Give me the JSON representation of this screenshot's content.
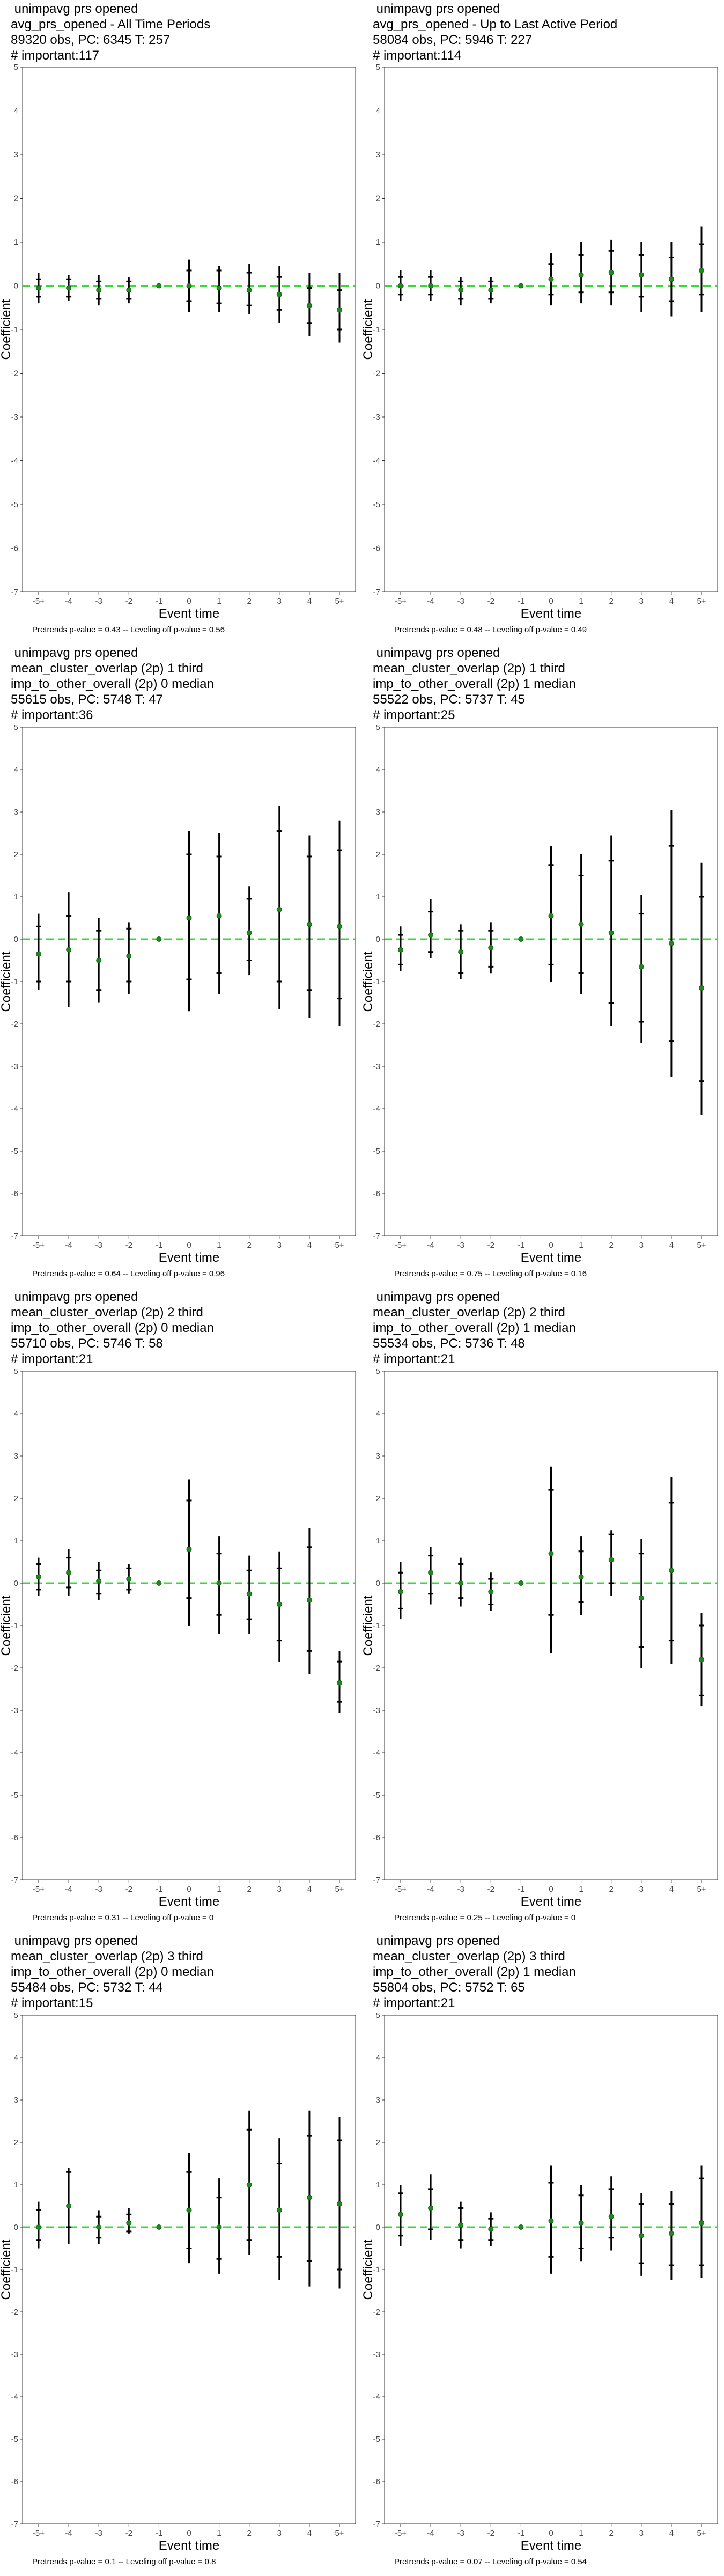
{
  "chart_data": [
    {
      "type": "scatter",
      "title_lines": [
        " unimpavg prs opened",
        "avg_prs_opened - All Time Periods",
        "89320 obs, PC: 6345 T: 257",
        "# important:117"
      ],
      "xlabel": "Event time",
      "ylabel": "Coefficient",
      "categories": [
        "-5+",
        "-4",
        "-3",
        "-2",
        "-1",
        "0",
        "1",
        "2",
        "3",
        "4",
        "5+"
      ],
      "ylim": [
        -7,
        5
      ],
      "yticks": [
        5,
        4,
        3,
        2,
        1,
        0,
        -1,
        -2,
        -3,
        -4,
        -5,
        -6,
        -7
      ],
      "estimates": [
        -0.05,
        -0.05,
        -0.1,
        -0.1,
        0,
        0,
        -0.05,
        -0.1,
        -0.2,
        -0.45,
        -0.55
      ],
      "ci90": [
        [
          -0.25,
          0.15
        ],
        [
          -0.25,
          0.15
        ],
        [
          -0.3,
          0.1
        ],
        [
          -0.3,
          0.1
        ],
        [
          0,
          0
        ],
        [
          -0.35,
          0.35
        ],
        [
          -0.4,
          0.35
        ],
        [
          -0.45,
          0.3
        ],
        [
          -0.55,
          0.2
        ],
        [
          -0.85,
          -0.05
        ],
        [
          -1.0,
          -0.1
        ]
      ],
      "ci95": [
        [
          -0.4,
          0.3
        ],
        [
          -0.35,
          0.25
        ],
        [
          -0.45,
          0.25
        ],
        [
          -0.4,
          0.2
        ],
        [
          0,
          0
        ],
        [
          -0.6,
          0.6
        ],
        [
          -0.6,
          0.45
        ],
        [
          -0.65,
          0.5
        ],
        [
          -0.85,
          0.45
        ],
        [
          -1.15,
          0.3
        ],
        [
          -1.3,
          0.3
        ]
      ],
      "footer": "Pretrends p-value = 0.43 -- Leveling off p-value = 0.56"
    },
    {
      "type": "scatter",
      "title_lines": [
        " unimpavg prs opened",
        "avg_prs_opened - Up to Last Active Period",
        "58084 obs, PC: 5946 T: 227",
        "# important:114"
      ],
      "xlabel": "Event time",
      "ylabel": "Coefficient",
      "categories": [
        "-5+",
        "-4",
        "-3",
        "-2",
        "-1",
        "0",
        "1",
        "2",
        "3",
        "4",
        "5+"
      ],
      "ylim": [
        -7,
        5
      ],
      "yticks": [
        5,
        4,
        3,
        2,
        1,
        0,
        -1,
        -2,
        -3,
        -4,
        -5,
        -6,
        -7
      ],
      "estimates": [
        0.0,
        0.0,
        -0.1,
        -0.1,
        0,
        0.15,
        0.25,
        0.3,
        0.25,
        0.15,
        0.35
      ],
      "ci90": [
        [
          -0.2,
          0.2
        ],
        [
          -0.2,
          0.2
        ],
        [
          -0.3,
          0.1
        ],
        [
          -0.3,
          0.1
        ],
        [
          0,
          0
        ],
        [
          -0.2,
          0.5
        ],
        [
          -0.15,
          0.7
        ],
        [
          -0.15,
          0.8
        ],
        [
          -0.25,
          0.7
        ],
        [
          -0.35,
          0.65
        ],
        [
          -0.2,
          0.95
        ]
      ],
      "ci95": [
        [
          -0.35,
          0.35
        ],
        [
          -0.35,
          0.35
        ],
        [
          -0.45,
          0.2
        ],
        [
          -0.4,
          0.2
        ],
        [
          0,
          0
        ],
        [
          -0.45,
          0.75
        ],
        [
          -0.4,
          1.0
        ],
        [
          -0.45,
          1.05
        ],
        [
          -0.6,
          1.0
        ],
        [
          -0.7,
          1.0
        ],
        [
          -0.6,
          1.35
        ]
      ],
      "footer": "Pretrends p-value = 0.48 -- Leveling off p-value = 0.49"
    },
    {
      "type": "scatter",
      "title_lines": [
        " unimpavg prs opened",
        "mean_cluster_overlap (2p) 1 third",
        "imp_to_other_overall (2p) 0 median",
        "55615 obs, PC: 5748 T: 47",
        "# important:36"
      ],
      "xlabel": "Event time",
      "ylabel": "Coefficient",
      "categories": [
        "-5+",
        "-4",
        "-3",
        "-2",
        "-1",
        "0",
        "1",
        "2",
        "3",
        "4",
        "5+"
      ],
      "ylim": [
        -7,
        5
      ],
      "yticks": [
        5,
        4,
        3,
        2,
        1,
        0,
        -1,
        -2,
        -3,
        -4,
        -5,
        -6,
        -7
      ],
      "estimates": [
        -0.35,
        -0.25,
        -0.5,
        -0.4,
        0,
        0.5,
        0.55,
        0.15,
        0.7,
        0.35,
        0.3
      ],
      "ci90": [
        [
          -1.0,
          0.3
        ],
        [
          -1.0,
          0.55
        ],
        [
          -1.2,
          0.2
        ],
        [
          -1.0,
          0.25
        ],
        [
          0,
          0
        ],
        [
          -0.95,
          2.0
        ],
        [
          -0.8,
          1.95
        ],
        [
          -0.5,
          0.95
        ],
        [
          -1.0,
          2.55
        ],
        [
          -1.2,
          1.95
        ],
        [
          -1.4,
          2.1
        ]
      ],
      "ci95": [
        [
          -1.2,
          0.6
        ],
        [
          -1.6,
          1.1
        ],
        [
          -1.5,
          0.5
        ],
        [
          -1.3,
          0.4
        ],
        [
          0,
          0
        ],
        [
          -1.7,
          2.55
        ],
        [
          -1.3,
          2.5
        ],
        [
          -0.85,
          1.25
        ],
        [
          -1.65,
          3.15
        ],
        [
          -1.85,
          2.45
        ],
        [
          -2.05,
          2.8
        ]
      ],
      "footer": "Pretrends p-value = 0.64 -- Leveling off p-value = 0.96"
    },
    {
      "type": "scatter",
      "title_lines": [
        " unimpavg prs opened",
        "mean_cluster_overlap (2p) 1 third",
        "imp_to_other_overall (2p) 1 median",
        "55522 obs, PC: 5737 T: 45",
        "# important:25"
      ],
      "xlabel": "Event time",
      "ylabel": "Coefficient",
      "categories": [
        "-5+",
        "-4",
        "-3",
        "-2",
        "-1",
        "0",
        "1",
        "2",
        "3",
        "4",
        "5+"
      ],
      "ylim": [
        -7,
        5
      ],
      "yticks": [
        5,
        4,
        3,
        2,
        1,
        0,
        -1,
        -2,
        -3,
        -4,
        -5,
        -6,
        -7
      ],
      "estimates": [
        -0.25,
        0.1,
        -0.3,
        -0.2,
        0,
        0.55,
        0.35,
        0.15,
        -0.65,
        -0.1,
        -1.15
      ],
      "ci90": [
        [
          -0.6,
          0.1
        ],
        [
          -0.3,
          0.65
        ],
        [
          -0.8,
          0.2
        ],
        [
          -0.65,
          0.2
        ],
        [
          0,
          0
        ],
        [
          -0.6,
          1.75
        ],
        [
          -0.8,
          1.5
        ],
        [
          -1.5,
          1.85
        ],
        [
          -1.95,
          0.6
        ],
        [
          -2.4,
          2.2
        ],
        [
          -3.35,
          1.0
        ]
      ],
      "ci95": [
        [
          -0.75,
          0.3
        ],
        [
          -0.45,
          0.95
        ],
        [
          -0.95,
          0.35
        ],
        [
          -0.8,
          0.4
        ],
        [
          0,
          0
        ],
        [
          -1.0,
          2.2
        ],
        [
          -1.3,
          2.0
        ],
        [
          -2.05,
          2.45
        ],
        [
          -2.45,
          1.05
        ],
        [
          -3.25,
          3.05
        ],
        [
          -4.15,
          1.8
        ]
      ],
      "footer": "Pretrends p-value = 0.75 -- Leveling off p-value = 0.16"
    },
    {
      "type": "scatter",
      "title_lines": [
        " unimpavg prs opened",
        "mean_cluster_overlap (2p) 2 third",
        "imp_to_other_overall (2p) 0 median",
        "55710 obs, PC: 5746 T: 58",
        "# important:21"
      ],
      "xlabel": "Event time",
      "ylabel": "Coefficient",
      "categories": [
        "-5+",
        "-4",
        "-3",
        "-2",
        "-1",
        "0",
        "1",
        "2",
        "3",
        "4",
        "5+"
      ],
      "ylim": [
        -7,
        5
      ],
      "yticks": [
        5,
        4,
        3,
        2,
        1,
        0,
        -1,
        -2,
        -3,
        -4,
        -5,
        -6,
        -7
      ],
      "estimates": [
        0.15,
        0.25,
        0.05,
        0.1,
        0,
        0.8,
        0.0,
        -0.25,
        -0.5,
        -0.4,
        -2.35
      ],
      "ci90": [
        [
          -0.15,
          0.45
        ],
        [
          -0.1,
          0.6
        ],
        [
          -0.25,
          0.3
        ],
        [
          -0.15,
          0.35
        ],
        [
          0,
          0
        ],
        [
          -0.35,
          1.95
        ],
        [
          -0.75,
          0.7
        ],
        [
          -0.85,
          0.3
        ],
        [
          -1.35,
          0.35
        ],
        [
          -1.6,
          0.85
        ],
        [
          -2.8,
          -1.85
        ]
      ],
      "ci95": [
        [
          -0.3,
          0.6
        ],
        [
          -0.3,
          0.8
        ],
        [
          -0.4,
          0.5
        ],
        [
          -0.25,
          0.45
        ],
        [
          0,
          0
        ],
        [
          -1.0,
          2.45
        ],
        [
          -1.2,
          1.1
        ],
        [
          -1.2,
          0.65
        ],
        [
          -1.85,
          0.75
        ],
        [
          -2.15,
          1.3
        ],
        [
          -3.05,
          -1.6
        ]
      ],
      "footer": "Pretrends p-value = 0.31 -- Leveling off p-value = 0"
    },
    {
      "type": "scatter",
      "title_lines": [
        " unimpavg prs opened",
        "mean_cluster_overlap (2p) 2 third",
        "imp_to_other_overall (2p) 1 median",
        "55534 obs, PC: 5736 T: 48",
        "# important:21"
      ],
      "xlabel": "Event time",
      "ylabel": "Coefficient",
      "categories": [
        "-5+",
        "-4",
        "-3",
        "-2",
        "-1",
        "0",
        "1",
        "2",
        "3",
        "4",
        "5+"
      ],
      "ylim": [
        -7,
        5
      ],
      "yticks": [
        5,
        4,
        3,
        2,
        1,
        0,
        -1,
        -2,
        -3,
        -4,
        -5,
        -6,
        -7
      ],
      "estimates": [
        -0.2,
        0.25,
        0.0,
        -0.2,
        0,
        0.7,
        0.15,
        0.55,
        -0.35,
        0.3,
        -1.8
      ],
      "ci90": [
        [
          -0.6,
          0.25
        ],
        [
          -0.25,
          0.65
        ],
        [
          -0.35,
          0.45
        ],
        [
          -0.5,
          0.1
        ],
        [
          0,
          0
        ],
        [
          -0.75,
          2.2
        ],
        [
          -0.45,
          0.75
        ],
        [
          0.0,
          1.15
        ],
        [
          -1.5,
          0.7
        ],
        [
          -1.35,
          1.9
        ],
        [
          -2.65,
          -1.0
        ]
      ],
      "ci95": [
        [
          -0.85,
          0.5
        ],
        [
          -0.5,
          0.85
        ],
        [
          -0.55,
          0.6
        ],
        [
          -0.65,
          0.25
        ],
        [
          0,
          0
        ],
        [
          -1.65,
          2.75
        ],
        [
          -0.75,
          1.1
        ],
        [
          -0.3,
          1.25
        ],
        [
          -2.0,
          1.05
        ],
        [
          -1.9,
          2.5
        ],
        [
          -2.9,
          -0.7
        ]
      ],
      "footer": "Pretrends p-value = 0.25 -- Leveling off p-value = 0"
    },
    {
      "type": "scatter",
      "title_lines": [
        " unimpavg prs opened",
        "mean_cluster_overlap (2p) 3 third",
        "imp_to_other_overall (2p) 0 median",
        "55484 obs, PC: 5732 T: 44",
        "# important:15"
      ],
      "xlabel": "Event time",
      "ylabel": "Coefficient",
      "categories": [
        "-5+",
        "-4",
        "-3",
        "-2",
        "-1",
        "0",
        "1",
        "2",
        "3",
        "4",
        "5+"
      ],
      "ylim": [
        -7,
        5
      ],
      "yticks": [
        5,
        4,
        3,
        2,
        1,
        0,
        -1,
        -2,
        -3,
        -4,
        -5,
        -6,
        -7
      ],
      "estimates": [
        0.0,
        0.5,
        0.0,
        0.1,
        0,
        0.4,
        0.0,
        1.0,
        0.4,
        0.7,
        0.55
      ],
      "ci90": [
        [
          -0.3,
          0.4
        ],
        [
          0.0,
          1.3
        ],
        [
          -0.25,
          0.25
        ],
        [
          -0.1,
          0.3
        ],
        [
          0,
          0
        ],
        [
          -0.5,
          1.3
        ],
        [
          -0.75,
          0.7
        ],
        [
          -0.3,
          2.3
        ],
        [
          -0.7,
          1.5
        ],
        [
          -0.8,
          2.15
        ],
        [
          -1.0,
          2.05
        ]
      ],
      "ci95": [
        [
          -0.5,
          0.6
        ],
        [
          -0.4,
          1.4
        ],
        [
          -0.4,
          0.4
        ],
        [
          -0.15,
          0.45
        ],
        [
          0,
          0
        ],
        [
          -0.85,
          1.75
        ],
        [
          -1.1,
          1.15
        ],
        [
          -0.65,
          2.75
        ],
        [
          -1.25,
          2.1
        ],
        [
          -1.4,
          2.75
        ],
        [
          -1.45,
          2.6
        ]
      ],
      "footer": "Pretrends p-value = 0.1 -- Leveling off p-value = 0.8"
    },
    {
      "type": "scatter",
      "title_lines": [
        " unimpavg prs opened",
        "mean_cluster_overlap (2p) 3 third",
        "imp_to_other_overall (2p) 1 median",
        "55804 obs, PC: 5752 T: 65",
        "# important:21"
      ],
      "xlabel": "Event time",
      "ylabel": "Coefficient",
      "categories": [
        "-5+",
        "-4",
        "-3",
        "-2",
        "-1",
        "0",
        "1",
        "2",
        "3",
        "4",
        "5+"
      ],
      "ylim": [
        -7,
        5
      ],
      "yticks": [
        5,
        4,
        3,
        2,
        1,
        0,
        -1,
        -2,
        -3,
        -4,
        -5,
        -6,
        -7
      ],
      "estimates": [
        0.3,
        0.45,
        0.05,
        -0.05,
        0,
        0.15,
        0.1,
        0.25,
        -0.2,
        -0.15,
        0.1
      ],
      "ci90": [
        [
          -0.2,
          0.8
        ],
        [
          -0.05,
          0.9
        ],
        [
          -0.3,
          0.45
        ],
        [
          -0.3,
          0.2
        ],
        [
          0,
          0
        ],
        [
          -0.7,
          1.05
        ],
        [
          -0.5,
          0.75
        ],
        [
          -0.25,
          0.9
        ],
        [
          -0.85,
          0.55
        ],
        [
          -0.9,
          0.55
        ],
        [
          -0.9,
          1.15
        ]
      ],
      "ci95": [
        [
          -0.45,
          1.0
        ],
        [
          -0.3,
          1.25
        ],
        [
          -0.5,
          0.6
        ],
        [
          -0.45,
          0.35
        ],
        [
          0,
          0
        ],
        [
          -1.1,
          1.45
        ],
        [
          -0.8,
          1.0
        ],
        [
          -0.55,
          1.2
        ],
        [
          -1.15,
          0.8
        ],
        [
          -1.25,
          0.85
        ],
        [
          -1.2,
          1.45
        ]
      ],
      "footer": "Pretrends p-value = 0.07 -- Leveling off p-value = 0.54"
    }
  ],
  "colors": {
    "point": "#1e8a1e",
    "zero_line": "#33dd33",
    "error_bar": "#000000",
    "axis": "#333333"
  }
}
